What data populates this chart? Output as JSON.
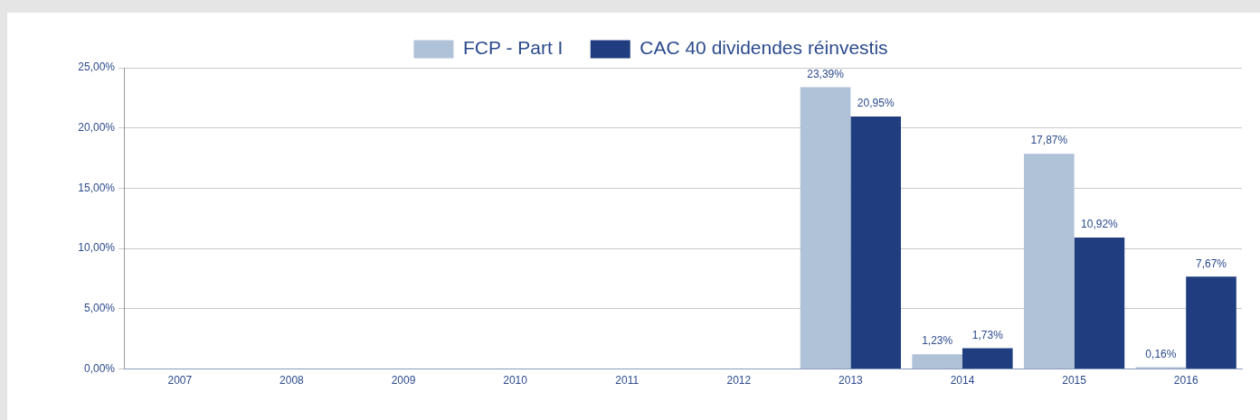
{
  "chart_data": {
    "type": "bar",
    "categories": [
      "2007",
      "2008",
      "2009",
      "2010",
      "2011",
      "2012",
      "2013",
      "2014",
      "2015",
      "2016"
    ],
    "series": [
      {
        "name": "FCP - Part I",
        "color": "#b0c2d8",
        "values": [
          null,
          null,
          null,
          null,
          null,
          null,
          23.39,
          1.23,
          17.87,
          0.16
        ],
        "value_labels": [
          null,
          null,
          null,
          null,
          null,
          null,
          "23,39%",
          "1,23%",
          "17,87%",
          "0,16%"
        ]
      },
      {
        "name": "CAC 40 dividendes réinvestis",
        "color": "#203e7f",
        "values": [
          null,
          null,
          null,
          null,
          null,
          null,
          20.95,
          1.73,
          10.92,
          7.67
        ],
        "value_labels": [
          null,
          null,
          null,
          null,
          null,
          null,
          "20,95%",
          "1,73%",
          "10,92%",
          "7,67%"
        ]
      }
    ],
    "ylim": [
      0,
      25
    ],
    "yticks": [
      {
        "value": 0,
        "label": "0,00%"
      },
      {
        "value": 5,
        "label": "5,00%"
      },
      {
        "value": 10,
        "label": "10,00%"
      },
      {
        "value": 15,
        "label": "15,00%"
      },
      {
        "value": 20,
        "label": "20,00%"
      },
      {
        "value": 25,
        "label": "25,00%"
      }
    ],
    "grid": "y",
    "legend": "top"
  }
}
